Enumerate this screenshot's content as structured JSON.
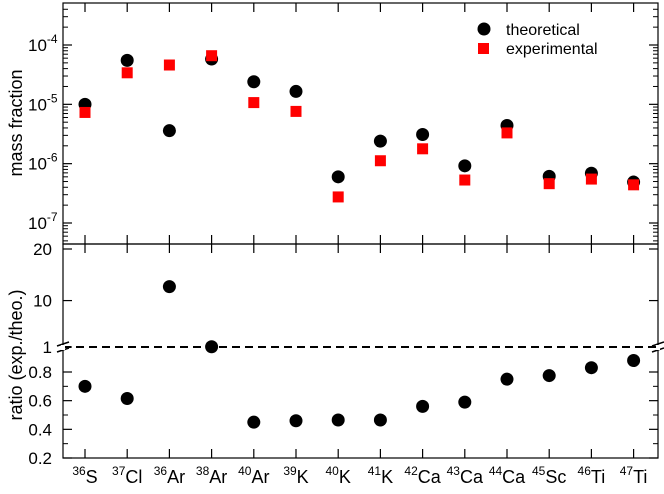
{
  "chart_data": [
    {
      "type": "scatter",
      "panel": "top",
      "ylabel": "mass fraction",
      "yscale": "log",
      "ylim": [
        5e-08,
        0.0005
      ],
      "ytick_labels": [
        {
          "base": "10",
          "exp": "-4"
        },
        {
          "base": "10",
          "exp": "-5"
        },
        {
          "base": "10",
          "exp": "-6"
        },
        {
          "base": "10",
          "exp": "-7"
        }
      ],
      "categories": [
        "36S",
        "37Cl",
        "36Ar",
        "38Ar",
        "40Ar",
        "39K",
        "40K",
        "41K",
        "42Ca",
        "43Ca",
        "44Ca",
        "45Sc",
        "46Ti",
        "47Ti"
      ],
      "legend_position": "top-right",
      "series": [
        {
          "name": "theoretical",
          "marker": "circle",
          "color": "#000000",
          "values": [
            1e-05,
            5.5e-05,
            3.6e-06,
            5.8e-05,
            2.4e-05,
            1.65e-05,
            6e-07,
            2.4e-06,
            3.1e-06,
            9.2e-07,
            4.4e-06,
            6.1e-07,
            6.9e-07,
            4.9e-07
          ]
        },
        {
          "name": "experimental",
          "marker": "square",
          "color": "#ff0000",
          "values": [
            7.3e-06,
            3.4e-05,
            4.6e-05,
            6.6e-05,
            1.07e-05,
            7.6e-06,
            2.75e-07,
            1.12e-06,
            1.78e-06,
            5.3e-07,
            3.3e-06,
            4.6e-07,
            5.5e-07,
            4.4e-07
          ]
        }
      ]
    },
    {
      "type": "scatter",
      "panel": "bottom",
      "ylabel": "ratio (exp./theo.)",
      "broken_axis": true,
      "reference_line": 1,
      "ytick_labels_upper": [
        "20",
        "10",
        "1"
      ],
      "ytick_labels_lower": [
        "0.8",
        "0.6",
        "0.4",
        "0.2"
      ],
      "categories": [
        "36S",
        "37Cl",
        "36Ar",
        "38Ar",
        "40Ar",
        "39K",
        "40K",
        "41K",
        "42Ca",
        "43Ca",
        "44Ca",
        "45Sc",
        "46Ti",
        "47Ti"
      ],
      "series": [
        {
          "marker": "circle",
          "color": "#000000",
          "values": [
            0.7,
            0.615,
            12.7,
            1.05,
            0.45,
            0.46,
            0.465,
            0.465,
            0.56,
            0.59,
            0.75,
            0.775,
            0.83,
            0.88
          ]
        }
      ]
    }
  ],
  "x_labels": [
    {
      "mass": "36",
      "element": "S"
    },
    {
      "mass": "37",
      "element": "Cl"
    },
    {
      "mass": "36",
      "element": "Ar"
    },
    {
      "mass": "38",
      "element": "Ar"
    },
    {
      "mass": "40",
      "element": "Ar"
    },
    {
      "mass": "39",
      "element": "K"
    },
    {
      "mass": "40",
      "element": "K"
    },
    {
      "mass": "41",
      "element": "K"
    },
    {
      "mass": "42",
      "element": "Ca"
    },
    {
      "mass": "43",
      "element": "Ca"
    },
    {
      "mass": "44",
      "element": "Ca"
    },
    {
      "mass": "45",
      "element": "Sc"
    },
    {
      "mass": "46",
      "element": "Ti"
    },
    {
      "mass": "47",
      "element": "Ti"
    }
  ]
}
